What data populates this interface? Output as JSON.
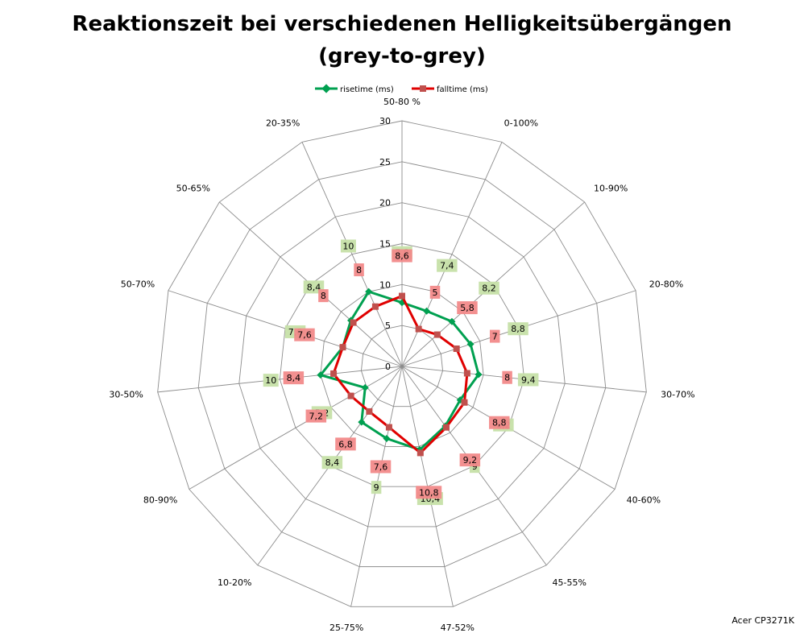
{
  "chart_data": {
    "type": "radar",
    "title_line1": "Reaktionszeit bei verschiedenen Helligkeitsübergängen",
    "title_line2": "(grey-to-grey)",
    "categories": [
      "50-80 %",
      "0-100%",
      "10-90%",
      "20-80%",
      "30-70%",
      "40-60%",
      "45-55%",
      "47-52%",
      "25-75%",
      "10-20%",
      "80-90%",
      "30-50%",
      "50-70%",
      "50-65%",
      "20-35%"
    ],
    "series": [
      {
        "name": "risetime (ms)",
        "color": "#00A050",
        "label_bg": "#C6E0A8",
        "values": [
          7.8,
          7.4,
          8.2,
          8.8,
          9.4,
          8.2,
          9.0,
          10.4,
          9.0,
          8.4,
          5.2,
          10.0,
          7.6,
          8.4,
          10.0
        ]
      },
      {
        "name": "falltime (ms)",
        "color": "#E00000",
        "label_bg": "#F28A8A",
        "values": [
          8.6,
          5.0,
          5.8,
          7.0,
          8.0,
          8.8,
          9.2,
          10.8,
          7.6,
          6.8,
          7.2,
          8.4,
          7.6,
          8.0,
          8.0
        ]
      }
    ],
    "r_ticks": [
      0,
      5,
      10,
      15,
      20,
      25,
      30
    ],
    "rlim": [
      0,
      30
    ],
    "grid": true,
    "legend_position": "top"
  },
  "watermark": "Acer CP3271K"
}
